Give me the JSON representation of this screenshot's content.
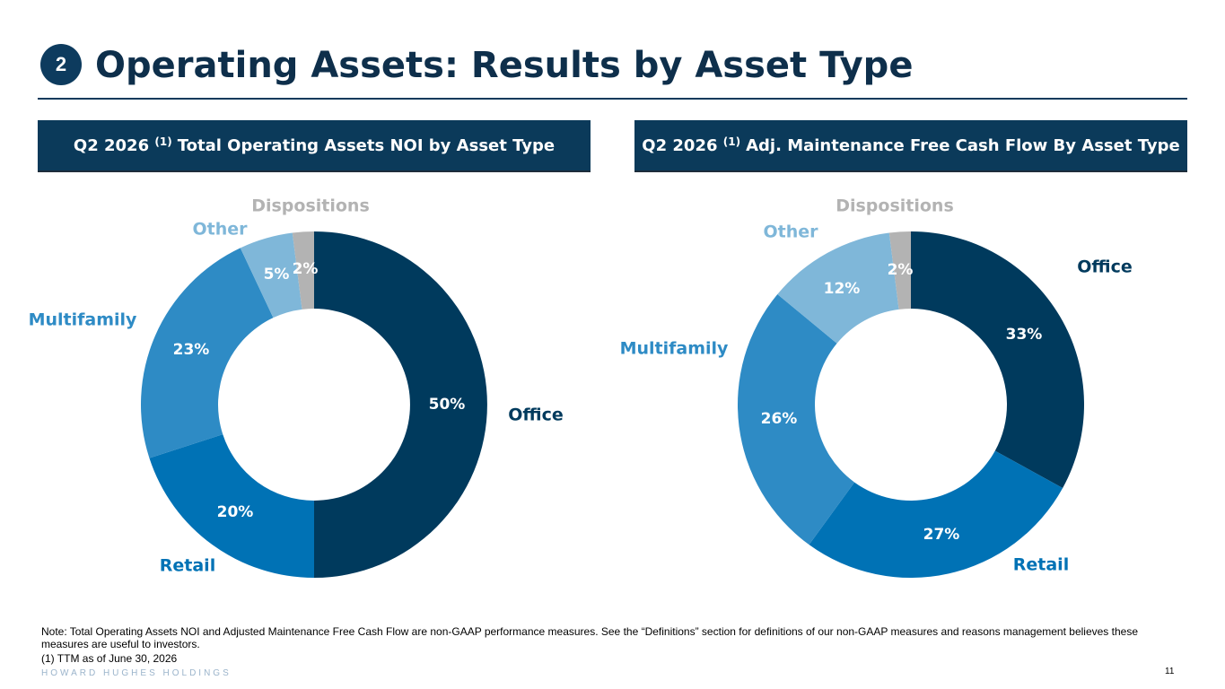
{
  "header": {
    "section_number": "2",
    "title": "Operating Assets: Results by Asset Type"
  },
  "panels": [
    {
      "title_prefix": "Q2 2026",
      "title_sup": "(1)",
      "title_suffix": "Total Operating Assets NOI by Asset Type"
    },
    {
      "title_prefix": "Q2 2026",
      "title_sup": "(1)",
      "title_suffix": "Adj. Maintenance Free Cash Flow By Asset Type"
    }
  ],
  "chart_data": [
    {
      "type": "pie",
      "donut": true,
      "categories": [
        "Office",
        "Retail",
        "Multifamily",
        "Other",
        "Dispositions"
      ],
      "values": [
        50,
        20,
        23,
        5,
        2
      ],
      "value_labels": [
        "50%",
        "20%",
        "23%",
        "5%",
        "2%"
      ],
      "colors": [
        "#003a5d",
        "#0072b5",
        "#2e8bc5",
        "#7fb7d9",
        "#b3b3b3"
      ],
      "label_colors": [
        "#003a5d",
        "#0072b5",
        "#2e8bc5",
        "#7fb7d9",
        "#b3b3b3"
      ]
    },
    {
      "type": "pie",
      "donut": true,
      "categories": [
        "Office",
        "Retail",
        "Multifamily",
        "Other",
        "Dispositions"
      ],
      "values": [
        33,
        27,
        26,
        12,
        2
      ],
      "value_labels": [
        "33%",
        "27%",
        "26%",
        "12%",
        "2%"
      ],
      "colors": [
        "#003a5d",
        "#0072b5",
        "#2e8bc5",
        "#7fb7d9",
        "#b3b3b3"
      ],
      "label_colors": [
        "#003a5d",
        "#0072b5",
        "#2e8bc5",
        "#7fb7d9",
        "#b3b3b3"
      ]
    }
  ],
  "footer": {
    "note": "Note: Total Operating Assets NOI and Adjusted Maintenance Free Cash Flow are non-GAAP performance measures. See the “Definitions” section for definitions of our non-GAAP measures and reasons management believes these measures are useful to investors.",
    "footnote": "(1) TTM as of June 30, 2026",
    "brand": "HOWARD HUGHES HOLDINGS",
    "page_number": "11"
  }
}
